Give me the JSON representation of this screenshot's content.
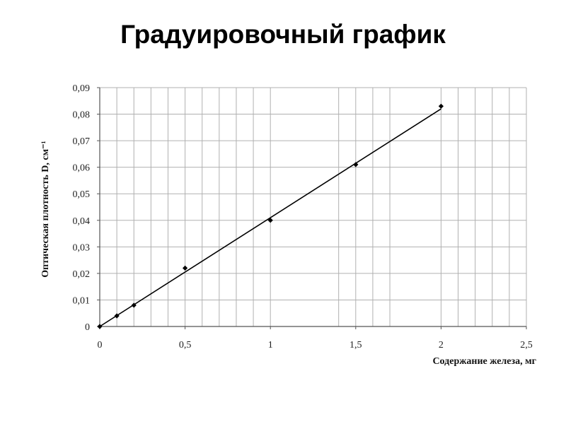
{
  "page": {
    "title": "Градуировочный график"
  },
  "chart_data": {
    "type": "scatter",
    "title": "Градуировочный график",
    "xlabel": "Содержание железа, мг",
    "ylabel": "Оптическая плотность D, см⁻¹",
    "xlim": [
      0,
      2.5
    ],
    "ylim": [
      0,
      0.09
    ],
    "x_ticks": [
      0,
      0.5,
      1,
      1.5,
      2,
      2.5
    ],
    "x_tick_labels": [
      "0",
      "0,5",
      "1",
      "1,5",
      "2",
      "2,5"
    ],
    "y_ticks": [
      0,
      0.01,
      0.02,
      0.03,
      0.04,
      0.05,
      0.06,
      0.07,
      0.08,
      0.09
    ],
    "y_tick_labels": [
      "0",
      "0,01",
      "0,02",
      "0,03",
      "0,04",
      "0,05",
      "0,06",
      "0,07",
      "0,08",
      "0,09"
    ],
    "x_minor_grid": [
      0.1,
      0.2,
      0.3,
      0.4,
      0.6,
      0.7,
      0.8,
      0.9,
      1.4,
      1.6,
      1.7,
      2.1,
      2.2,
      2.3,
      2.4
    ],
    "grid": true,
    "series": [
      {
        "x": [
          0,
          0.1,
          0.2,
          0.5,
          1,
          1.5,
          2
        ],
        "y": [
          0,
          0.004,
          0.008,
          0.022,
          0.04,
          0.061,
          0.083
        ]
      }
    ],
    "trendline": {
      "x": [
        0,
        2
      ],
      "y": [
        0,
        0.082
      ]
    },
    "colors": {
      "marker": "#000000",
      "line": "#000000",
      "grid": "#b0b0b0"
    }
  }
}
